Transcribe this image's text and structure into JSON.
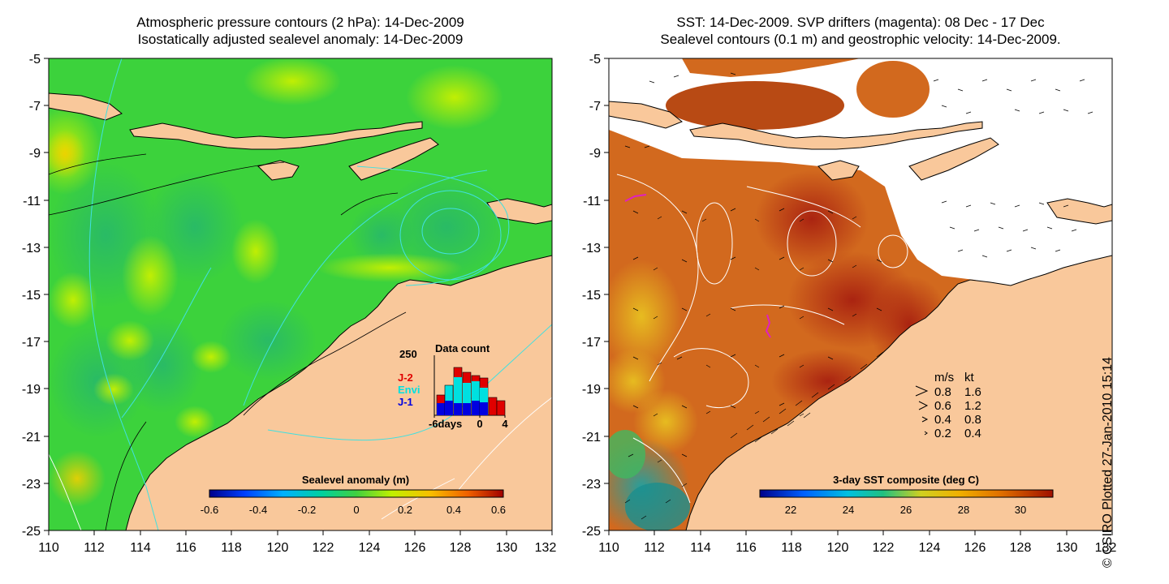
{
  "left_panel": {
    "title_line1": "Atmospheric pressure contours (2 hPa): 14-Dec-2009",
    "title_line2": "Isostatically adjusted sealevel anomaly: 14-Dec-2009",
    "x_ticks": [
      "110",
      "112",
      "114",
      "116",
      "118",
      "120",
      "122",
      "124",
      "126",
      "128",
      "130",
      "132"
    ],
    "y_ticks": [
      "-5",
      "-7",
      "-9",
      "-11",
      "-13",
      "-15",
      "-17",
      "-19",
      "-21",
      "-23",
      "-25"
    ],
    "colorbar": {
      "title": "Sealevel anomaly (m)",
      "ticks": [
        "-0.6",
        "-0.4",
        "-0.2",
        "0",
        "0.2",
        "0.4",
        "0.6"
      ]
    },
    "data_count": {
      "title": "Data count",
      "y_max": "250",
      "x_ticks": [
        "-6days",
        "0",
        "4"
      ],
      "legend": [
        {
          "label": "J-2",
          "color": "#e00000"
        },
        {
          "label": "Envi",
          "color": "#00e0e0"
        },
        {
          "label": "J-1",
          "color": "#0000e0"
        }
      ]
    }
  },
  "right_panel": {
    "title_line1": "SST: 14-Dec-2009. SVP drifters (magenta): 08 Dec - 17 Dec",
    "title_line2": "Sealevel contours (0.1 m) and geostrophic velocity: 14-Dec-2009.",
    "x_ticks": [
      "110",
      "112",
      "114",
      "116",
      "118",
      "120",
      "122",
      "124",
      "126",
      "128",
      "130",
      "132"
    ],
    "y_ticks": [
      "-5",
      "-7",
      "-9",
      "-11",
      "-13",
      "-15",
      "-17",
      "-19",
      "-21",
      "-23",
      "-25"
    ],
    "colorbar": {
      "title": "3-day SST composite (deg C)",
      "ticks": [
        "22",
        "24",
        "26",
        "28",
        "30"
      ]
    },
    "speed_legend": {
      "header_ms": "m/s",
      "header_kt": "kt",
      "rows": [
        {
          "ms": "0.8",
          "kt": "1.6"
        },
        {
          "ms": "0.6",
          "kt": "1.2"
        },
        {
          "ms": "0.4",
          "kt": "0.8"
        },
        {
          "ms": "0.2",
          "kt": "0.4"
        }
      ]
    }
  },
  "credit": "© CSIRO Plotted 27-Jan-2010 15:14",
  "colors": {
    "land": "#f9c89b",
    "sealevel_green": "#3cd23c",
    "sst_orange": "#d2691e",
    "contour_cyan": "#40e0e0"
  }
}
